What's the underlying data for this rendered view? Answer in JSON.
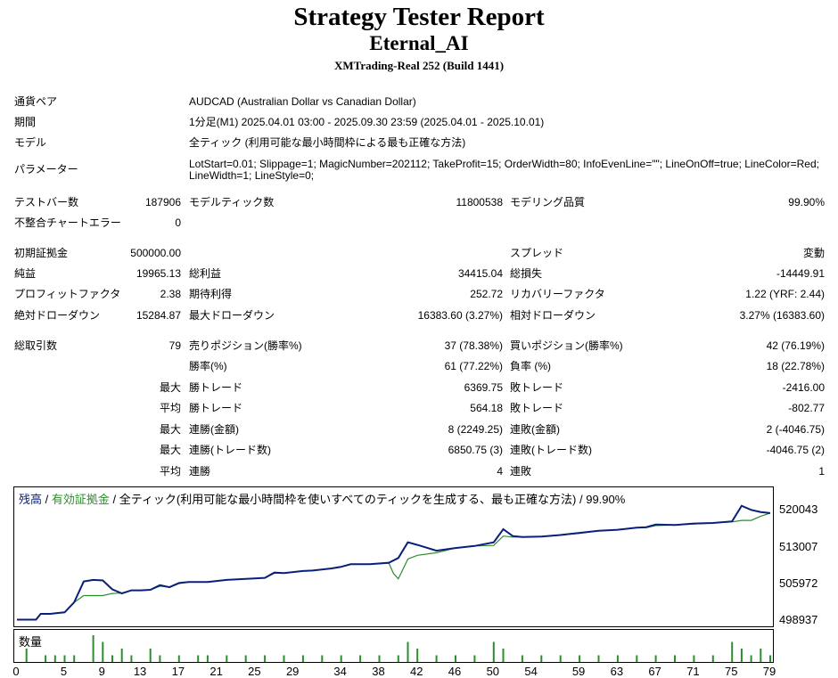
{
  "report": {
    "title": "Strategy Tester Report",
    "subtitle": "Eternal_AI",
    "server": "XMTrading-Real 252 (Build 1441)"
  },
  "settings": [
    {
      "label": "通貨ペア",
      "value": "AUDCAD (Australian Dollar vs Canadian Dollar)"
    },
    {
      "label": "期間",
      "value": "1分足(M1) 2025.04.01 03:00 - 2025.09.30 23:59 (2025.04.01 - 2025.10.01)"
    },
    {
      "label": "モデル",
      "value": "全ティック (利用可能な最小時間枠による最も正確な方法)"
    },
    {
      "label": "パラメーター",
      "value_line1": "LotStart=0.01; Slippage=1; MagicNumber=202112; TakeProfit=15; OrderWidth=80; InfoEvenLine=\"\"; LineOnOff=true; LineColor=Red;",
      "value_line2": "LineWidth=1; LineStyle=0;"
    }
  ],
  "bars": {
    "test_bars_label": "テストバー数",
    "test_bars": "187906",
    "model_ticks_label": "モデルティック数",
    "model_ticks": "11800538",
    "model_quality_label": "モデリング品質",
    "model_quality": "99.90%",
    "mismatch_label": "不整合チャートエラー",
    "mismatch": "0"
  },
  "results": {
    "initial_deposit_label": "初期証拠金",
    "initial_deposit": "500000.00",
    "spread_label": "スプレッド",
    "spread": "変動",
    "net_profit_label": "純益",
    "net_profit": "19965.13",
    "gross_profit_label": "総利益",
    "gross_profit": "34415.04",
    "gross_loss_label": "総損失",
    "gross_loss": "-14449.91",
    "profit_factor_label": "プロフィットファクタ",
    "profit_factor": "2.38",
    "expected_payoff_label": "期待利得",
    "expected_payoff": "252.72",
    "recovery_factor_label": "リカバリーファクタ",
    "recovery_factor": "1.22 (YRF: 2.44)",
    "abs_dd_label": "絶対ドローダウン",
    "abs_dd": "15284.87",
    "max_dd_label": "最大ドローダウン",
    "max_dd": "16383.60 (3.27%)",
    "rel_dd_label": "相対ドローダウン",
    "rel_dd": "3.27% (16383.60)"
  },
  "trades": {
    "total_label": "総取引数",
    "total": "79",
    "short_label": "売りポジション(勝率%)",
    "short": "37 (78.38%)",
    "long_label": "買いポジション(勝率%)",
    "long": "42 (76.19%)",
    "win_rate_label": "勝率(%)",
    "win_rate": "61 (77.22%)",
    "loss_rate_label": "負率 (%)",
    "loss_rate": "18 (22.78%)",
    "largest_prefix": "最大",
    "largest_win_label": "勝トレード",
    "largest_win": "6369.75",
    "largest_loss_label": "敗トレード",
    "largest_loss": "-2416.00",
    "average_prefix": "平均",
    "avg_win_label": "勝トレード",
    "avg_win": "564.18",
    "avg_loss_label": "敗トレード",
    "avg_loss": "-802.77",
    "max_prefix_1": "最大",
    "max_consec_wins_label": "連勝(金額)",
    "max_consec_wins": "8 (2249.25)",
    "max_consec_losses_label": "連敗(金額)",
    "max_consec_losses": "2 (-4046.75)",
    "max_prefix_2": "最大",
    "max_consec_profit_label": "連勝(トレード数)",
    "max_consec_profit": "6850.75 (3)",
    "max_consec_loss_label": "連敗(トレード数)",
    "max_consec_loss": "-4046.75 (2)",
    "avg_prefix_2": "平均",
    "avg_consec_wins_label": "連勝",
    "avg_consec_wins": "4",
    "avg_consec_losses_label": "連敗",
    "avg_consec_losses": "1"
  },
  "chart": {
    "legend_balance": "残高",
    "legend_sep": " / ",
    "legend_equity": "有効証拠金",
    "legend_rest": " / 全ティック(利用可能な最小時間枠を使いすべてのティックを生成する、最も正確な方法) / 99.90%",
    "volume_label": "数量",
    "colors": {
      "balance": "#0a1f7a",
      "equity": "#2e8b2e",
      "volume": "#2e8b2e",
      "legend_balance": "#0a1f7a"
    }
  },
  "chart_data": {
    "type": "line",
    "ylim": [
      498937,
      523500
    ],
    "yticks": [
      "520043",
      "513007",
      "505972",
      "498937"
    ],
    "ytick_values": [
      520043,
      513007,
      505972,
      498937
    ],
    "xticks": [
      "0",
      "5",
      "9",
      "13",
      "17",
      "21",
      "25",
      "29",
      "34",
      "38",
      "42",
      "46",
      "50",
      "54",
      "59",
      "63",
      "67",
      "71",
      "75",
      "79"
    ],
    "xlim": [
      0,
      79
    ],
    "series": [
      {
        "name": "残高",
        "x": [
          0,
          2,
          2.5,
          3.5,
          4,
          5,
          6,
          7,
          8,
          9,
          10,
          11,
          12,
          13,
          14,
          15,
          16,
          17,
          18,
          20,
          22,
          24,
          26,
          27,
          28,
          30,
          31,
          33,
          34,
          35,
          37,
          39,
          40,
          41,
          42,
          44,
          46,
          48,
          50,
          51,
          52,
          53,
          55,
          57,
          59,
          61,
          63,
          65,
          66,
          67,
          69,
          71,
          73,
          75,
          76,
          77,
          78,
          79
        ],
        "values": [
          499200,
          499200,
          500300,
          500300,
          500400,
          500600,
          502500,
          506500,
          506800,
          506700,
          505000,
          504200,
          504800,
          504800,
          504900,
          505800,
          505400,
          506200,
          506400,
          506400,
          506800,
          507000,
          507200,
          508200,
          508100,
          508500,
          508600,
          509000,
          509300,
          509800,
          509800,
          510100,
          511000,
          514000,
          513500,
          512400,
          512900,
          513300,
          514000,
          516500,
          515200,
          515000,
          515100,
          515400,
          515800,
          516200,
          516400,
          516800,
          516900,
          517400,
          517300,
          517600,
          517700,
          518000,
          521000,
          520200,
          519800,
          519600
        ]
      },
      {
        "name": "有効証拠金",
        "x": [
          0,
          2,
          2.5,
          3.5,
          4,
          5,
          6,
          7,
          8,
          9,
          10,
          11,
          12,
          13,
          14,
          15,
          16,
          17,
          18,
          20,
          22,
          24,
          26,
          27,
          28,
          30,
          31,
          33,
          34,
          35,
          37,
          39,
          39.5,
          40,
          41,
          42,
          44,
          46,
          48,
          50,
          51,
          52,
          53,
          55,
          57,
          59,
          61,
          63,
          65,
          66,
          67,
          69,
          71,
          73,
          75,
          76,
          77,
          78,
          79
        ],
        "values": [
          499200,
          499200,
          500300,
          500300,
          500400,
          500600,
          502500,
          503800,
          503800,
          503800,
          504200,
          504300,
          504800,
          504800,
          504900,
          505600,
          505400,
          506100,
          506400,
          506400,
          506800,
          507000,
          507200,
          508100,
          508100,
          508500,
          508600,
          509000,
          509300,
          509800,
          509800,
          510000,
          508000,
          507000,
          510800,
          511500,
          512000,
          512900,
          513300,
          513400,
          515200,
          515000,
          515000,
          515100,
          515400,
          515700,
          516200,
          516400,
          516800,
          516800,
          517200,
          517300,
          517500,
          517700,
          517900,
          518200,
          518200,
          519000,
          519600
        ]
      },
      {
        "name": "数量",
        "x": [
          1,
          3,
          4,
          5,
          6,
          8,
          9,
          10,
          11,
          12,
          14,
          15,
          17,
          19,
          20,
          22,
          24,
          26,
          28,
          30,
          32,
          34,
          36,
          38,
          40,
          41,
          42,
          44,
          46,
          48,
          50,
          51,
          53,
          55,
          57,
          59,
          61,
          63,
          65,
          67,
          69,
          71,
          73,
          75,
          76,
          77,
          78,
          79
        ],
        "values": [
          2,
          1,
          1,
          1,
          1,
          4,
          3,
          1,
          2,
          1,
          2,
          1,
          1,
          1,
          1,
          1,
          1,
          1,
          1,
          1,
          1,
          1,
          1,
          1,
          1,
          3,
          2,
          1,
          1,
          1,
          3,
          2,
          1,
          1,
          1,
          1,
          1,
          1,
          1,
          1,
          1,
          1,
          1,
          3,
          2,
          1,
          2,
          1
        ]
      }
    ]
  }
}
